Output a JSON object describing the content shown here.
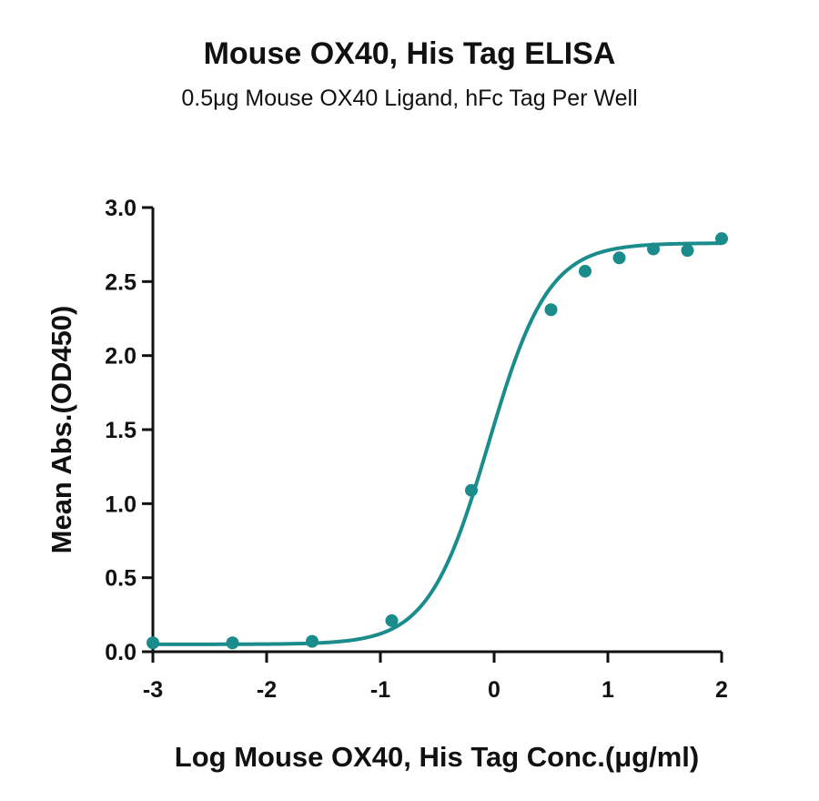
{
  "chart_data": {
    "type": "scatter",
    "title": "Mouse OX40, His Tag ELISA",
    "subtitle": "0.5μg Mouse OX40 Ligand, hFc Tag Per Well",
    "xlabel": "Log Mouse OX40, His Tag Conc.(μg/ml)",
    "ylabel": "Mean Abs.(OD450)",
    "xlim": [
      -3,
      2
    ],
    "ylim": [
      0,
      3
    ],
    "xticks": [
      -3,
      -2,
      -1,
      0,
      1,
      2
    ],
    "xtick_labels": [
      "-3",
      "-2",
      "-1",
      "0",
      "1",
      "2"
    ],
    "yticks": [
      0,
      0.5,
      1,
      1.5,
      2,
      2.5,
      3
    ],
    "ytick_labels": [
      "0.0",
      "0.5",
      "1.0",
      "1.5",
      "2.0",
      "2.5",
      "3.0"
    ],
    "color": "#1a8c8c",
    "grid": false,
    "series": [
      {
        "x": [
          -3.0,
          -2.3,
          -1.6,
          -0.9,
          -0.2,
          0.5,
          0.8,
          1.1,
          1.4,
          1.7,
          2.0
        ],
        "y": [
          0.06,
          0.06,
          0.07,
          0.21,
          1.09,
          2.31,
          2.57,
          2.66,
          2.72,
          2.71,
          2.79
        ]
      }
    ],
    "fit": {
      "model": "4PL",
      "bottom": 0.05,
      "top": 2.76,
      "ec50_log": -0.05,
      "hill": 1.65
    }
  }
}
